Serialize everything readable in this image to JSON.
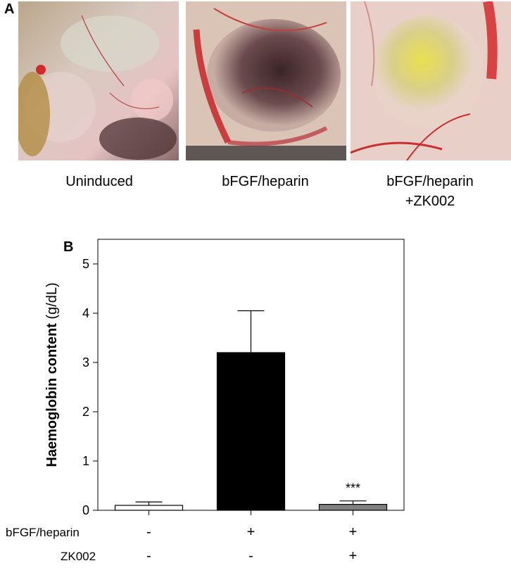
{
  "panel_a": {
    "letter": "A",
    "images": [
      {
        "caption_lines": [
          "Uninduced"
        ]
      },
      {
        "caption_lines": [
          "bFGF/heparin"
        ]
      },
      {
        "caption_lines": [
          "bFGF/heparin",
          "+ZK002"
        ]
      }
    ]
  },
  "panel_b": {
    "letter": "B"
  },
  "chart_data": {
    "type": "bar",
    "categories": [
      "Uninduced",
      "bFGF/heparin",
      "bFGF/heparin+ZK002"
    ],
    "values": [
      0.1,
      3.2,
      0.12
    ],
    "errors": [
      0.07,
      0.85,
      0.07
    ],
    "bar_colors": [
      "#ffffff",
      "#000000",
      "#808080"
    ],
    "ylabel_bold": "Haemoglobin content",
    "ylabel_unit": "(g/dL)",
    "ylim": [
      0,
      5.5
    ],
    "yticks": [
      "0",
      "1",
      "2",
      "3",
      "4",
      "5"
    ],
    "significance": [
      "",
      "",
      "***"
    ],
    "conditions": [
      {
        "name": "bFGF/heparin",
        "symbols": [
          "-",
          "+",
          "+"
        ]
      },
      {
        "name": "ZK002",
        "symbols": [
          "-",
          "-",
          "+"
        ]
      }
    ],
    "grid": false,
    "legend": "none"
  }
}
